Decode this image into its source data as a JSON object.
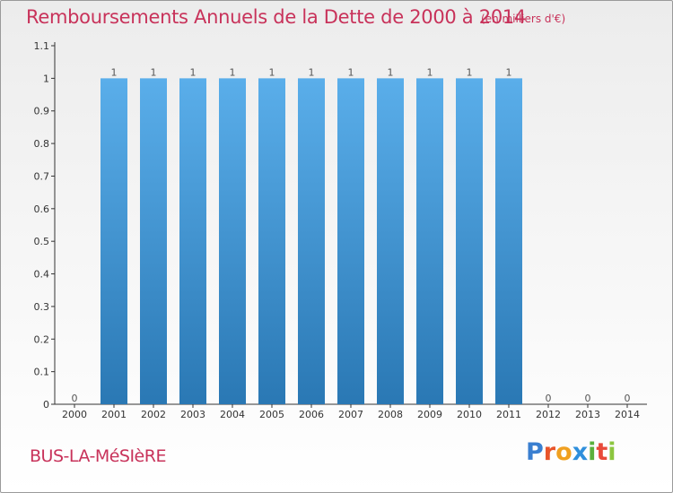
{
  "header": {
    "title": "Remboursements Annuels de la Dette de 2000 à 2014",
    "subtitle": "(en milliers d'€)"
  },
  "footer": {
    "commune": "BUS-LA-MéSIèRE",
    "logo": "Proxiti"
  },
  "logo_letters": [
    {
      "ch": "P",
      "color": "#3a7fd0"
    },
    {
      "ch": "r",
      "color": "#e8542a"
    },
    {
      "ch": "o",
      "color": "#f0a020"
    },
    {
      "ch": "x",
      "color": "#2f8fdc"
    },
    {
      "ch": "i",
      "color": "#5ab03c"
    },
    {
      "ch": "t",
      "color": "#e84a3a"
    },
    {
      "ch": "i",
      "color": "#8cc63f"
    }
  ],
  "colors": {
    "bar_top": "#5aaeea",
    "bar_bottom": "#2a78b4",
    "accent": "#c8325a"
  },
  "chart_data": {
    "type": "bar",
    "categories": [
      "2000",
      "2001",
      "2002",
      "2003",
      "2004",
      "2005",
      "2006",
      "2007",
      "2008",
      "2009",
      "2010",
      "2011",
      "2012",
      "2013",
      "2014"
    ],
    "values": [
      0,
      1,
      1,
      1,
      1,
      1,
      1,
      1,
      1,
      1,
      1,
      1,
      0,
      0,
      0
    ],
    "data_labels": [
      "0",
      "1",
      "1",
      "1",
      "1",
      "1",
      "1",
      "1",
      "1",
      "1",
      "1",
      "1",
      "0",
      "0",
      "0"
    ],
    "y_ticks": [
      "0",
      "0.1",
      "0.2",
      "0.3",
      "0.4",
      "0.5",
      "0.6",
      "0.7",
      "0.8",
      "0.9",
      "1",
      "1.1"
    ],
    "ylim": [
      0,
      1.1
    ],
    "grid": false
  }
}
